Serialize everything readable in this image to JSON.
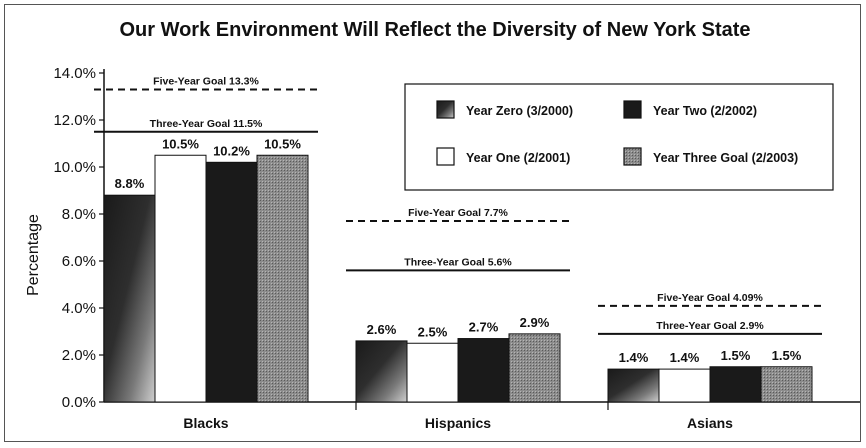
{
  "chart_data": {
    "type": "bar",
    "title": "Our Work Environment Will Reflect the Diversity of New York State",
    "ylabel": "Percentage",
    "xlabel": "",
    "ylim": [
      0,
      14
    ],
    "yticks": [
      "0.0%",
      "2.0%",
      "4.0%",
      "6.0%",
      "8.0%",
      "10.0%",
      "12.0%",
      "14.0%"
    ],
    "grid": false,
    "legend_position": "top-right",
    "categories": [
      "Blacks",
      "Hispanics",
      "Asians"
    ],
    "series": [
      {
        "name": "Year Zero (3/2000)",
        "values": [
          8.8,
          2.6,
          1.4
        ],
        "labels": [
          "8.8%",
          "2.6%",
          "1.4%"
        ],
        "fill": "gradient-dark"
      },
      {
        "name": "Year One (2/2001)",
        "values": [
          10.5,
          2.5,
          1.4
        ],
        "labels": [
          "10.5%",
          "2.5%",
          "1.4%"
        ],
        "fill": "white"
      },
      {
        "name": "Year Two (2/2002)",
        "values": [
          10.2,
          2.7,
          1.5
        ],
        "labels": [
          "10.2%",
          "2.7%",
          "1.5%"
        ],
        "fill": "black"
      },
      {
        "name": "Year Three Goal (2/2003)",
        "values": [
          10.5,
          2.9,
          1.5
        ],
        "labels": [
          "10.5%",
          "2.9%",
          "1.5%"
        ],
        "fill": "dotted-gray"
      }
    ],
    "goals": [
      {
        "category": "Blacks",
        "five_year": {
          "value": 13.3,
          "label": "Five-Year Goal 13.3%"
        },
        "three_year": {
          "value": 11.5,
          "label": "Three-Year Goal 11.5%"
        }
      },
      {
        "category": "Hispanics",
        "five_year": {
          "value": 7.7,
          "label": "Five-Year Goal 7.7%"
        },
        "three_year": {
          "value": 5.6,
          "label": "Three-Year Goal 5.6%"
        }
      },
      {
        "category": "Asians",
        "five_year": {
          "value": 4.09,
          "label": "Five-Year Goal 4.09%"
        },
        "three_year": {
          "value": 2.9,
          "label": "Three-Year Goal 2.9%"
        }
      }
    ],
    "colors": {
      "bar_dark": "#1a1a1a",
      "bar_gray": "#8a8a8a",
      "axis": "#111111",
      "goal_line": "#111111"
    }
  }
}
